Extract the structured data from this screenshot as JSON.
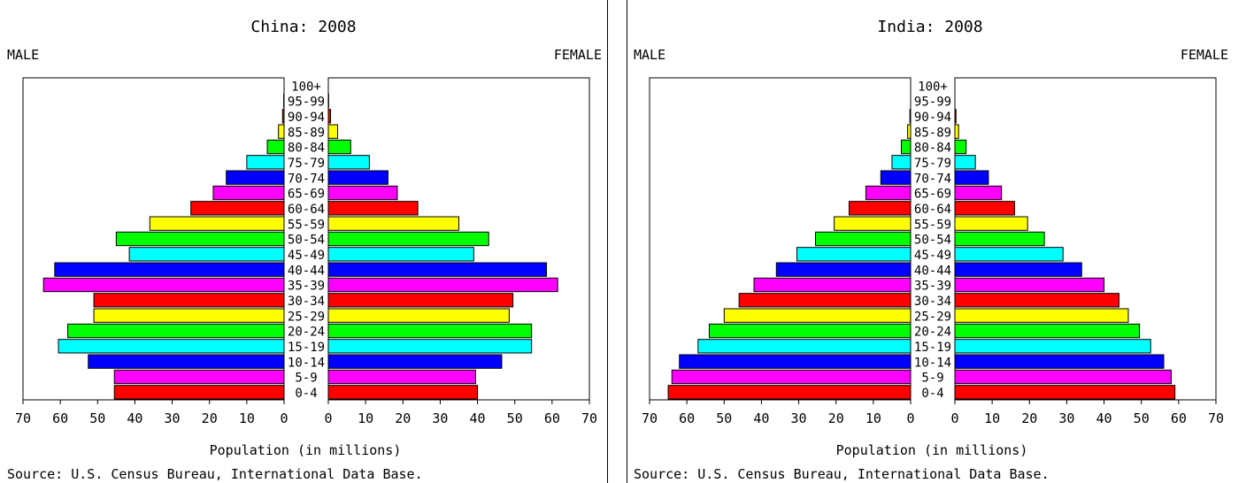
{
  "colors": [
    "#ff0000",
    "#ff00ff",
    "#0000ff",
    "#00ffff",
    "#00ff00",
    "#ffff00",
    "#ff0000",
    "#ff00ff",
    "#0000ff",
    "#00ffff",
    "#00ff00",
    "#ffff00",
    "#ff0000",
    "#ff00ff",
    "#0000ff",
    "#00ffff",
    "#00ff00",
    "#ffff00",
    "#ff0000",
    "#ff00ff",
    "#0000ff"
  ],
  "chart_data": [
    {
      "type": "bar",
      "title": "China: 2008",
      "left_label": "MALE",
      "right_label": "FEMALE",
      "xlabel": "Population (in millions)",
      "source": "Source: U.S. Census Bureau, International Data Base.",
      "categories": [
        "0-4",
        "5-9",
        "10-14",
        "15-19",
        "20-24",
        "25-29",
        "30-34",
        "35-39",
        "40-44",
        "45-49",
        "50-54",
        "55-59",
        "60-64",
        "65-69",
        "70-74",
        "75-79",
        "80-84",
        "85-89",
        "90-94",
        "95-99",
        "100+"
      ],
      "xlim": [
        0,
        70
      ],
      "ticks": [
        "70",
        "60",
        "50",
        "40",
        "30",
        "20",
        "10",
        "0"
      ],
      "ticks_right": [
        "0",
        "10",
        "20",
        "30",
        "40",
        "50",
        "60",
        "70"
      ],
      "series": [
        {
          "name": "MALE",
          "values": [
            45.5,
            45.5,
            52.5,
            60.5,
            58.0,
            51.0,
            51.0,
            64.5,
            61.5,
            41.5,
            45.0,
            36.0,
            25.0,
            19.0,
            15.5,
            10.0,
            4.5,
            1.5,
            0.4,
            0.1,
            0.0
          ]
        },
        {
          "name": "FEMALE",
          "values": [
            40.0,
            39.5,
            46.5,
            54.5,
            54.5,
            48.5,
            49.5,
            61.5,
            58.5,
            39.0,
            43.0,
            35.0,
            24.0,
            18.5,
            16.0,
            11.0,
            6.0,
            2.5,
            0.6,
            0.1,
            0.0
          ]
        }
      ]
    },
    {
      "type": "bar",
      "title": "India: 2008",
      "left_label": "MALE",
      "right_label": "FEMALE",
      "xlabel": "Population (in millions)",
      "source": "Source: U.S. Census Bureau, International Data Base.",
      "categories": [
        "0-4",
        "5-9",
        "10-14",
        "15-19",
        "20-24",
        "25-29",
        "30-34",
        "35-39",
        "40-44",
        "45-49",
        "50-54",
        "55-59",
        "60-64",
        "65-69",
        "70-74",
        "75-79",
        "80-84",
        "85-89",
        "90-94",
        "95-99",
        "100+"
      ],
      "xlim": [
        0,
        70
      ],
      "ticks": [
        "70",
        "60",
        "50",
        "40",
        "30",
        "20",
        "10",
        "0"
      ],
      "ticks_right": [
        "0",
        "10",
        "20",
        "30",
        "40",
        "50",
        "60",
        "70"
      ],
      "series": [
        {
          "name": "MALE",
          "values": [
            65.0,
            64.0,
            62.0,
            57.0,
            54.0,
            50.0,
            46.0,
            42.0,
            36.0,
            30.5,
            25.5,
            20.5,
            16.5,
            12.0,
            8.0,
            5.0,
            2.5,
            0.8,
            0.2,
            0.0,
            0.0
          ]
        },
        {
          "name": "FEMALE",
          "values": [
            59.0,
            58.0,
            56.0,
            52.5,
            49.5,
            46.5,
            44.0,
            40.0,
            34.0,
            29.0,
            24.0,
            19.5,
            16.0,
            12.5,
            9.0,
            5.5,
            3.0,
            1.0,
            0.3,
            0.0,
            0.0
          ]
        }
      ]
    }
  ]
}
